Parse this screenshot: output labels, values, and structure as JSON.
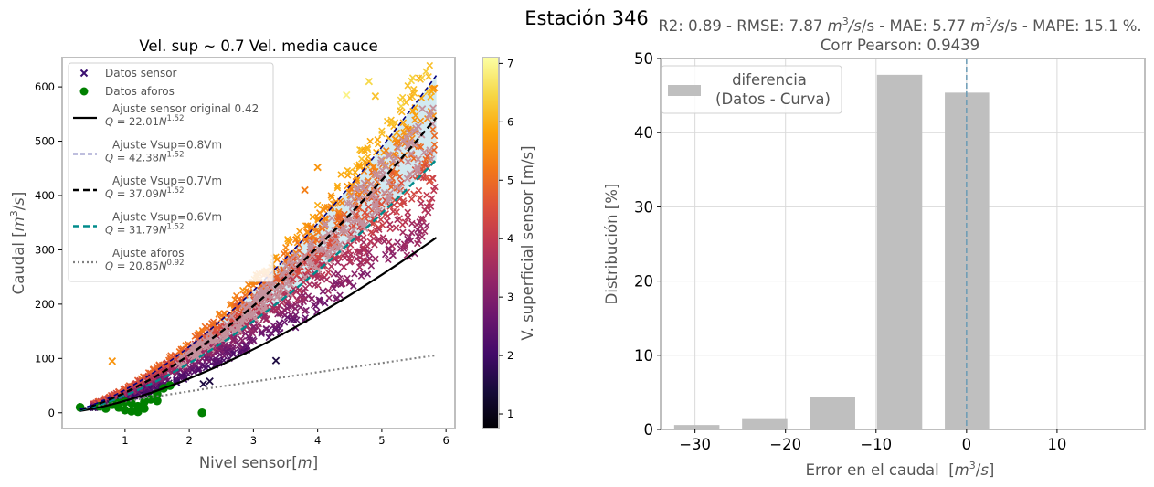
{
  "figure": {
    "suptitle": "Estación 346"
  },
  "chart_data": [
    {
      "type": "scatter",
      "title": "Vel. sup ~ 0.7 Vel. media cauce",
      "xlabel": "Nivel sensor[m]",
      "xlabel_parts": {
        "text": "Nivel sensor[",
        "italic": "m",
        "end": "]"
      },
      "ylabel": "Caudal [m^3/s]",
      "ylabel_parts": {
        "text": "Caudal [",
        "italic": "m",
        "sup": "3",
        "end": "/s]",
        "italic2": "s"
      },
      "xlim": [
        0.02,
        6.14
      ],
      "ylim": [
        -29,
        654
      ],
      "xticks": [
        1,
        2,
        3,
        4,
        5,
        6
      ],
      "yticks": [
        0,
        100,
        200,
        300,
        400,
        500,
        600
      ],
      "grid": false,
      "legend_position": "top-left",
      "legend": [
        {
          "label": "Datos sensor",
          "kind": "marker-x",
          "color": "#3b0f70"
        },
        {
          "label": "Datos aforos",
          "kind": "marker-dot",
          "color": "#008000"
        },
        {
          "label": "Ajuste sensor original 0.42",
          "eq_coef": "22.01",
          "eq_exp": "1.52",
          "kind": "line-solid",
          "color": "#000000"
        },
        {
          "label": "Ajuste Vsup=0.8Vm",
          "eq_coef": "42.38",
          "eq_exp": "1.52",
          "kind": "line-dashed",
          "color": "#00007f"
        },
        {
          "label": "Ajuste Vsup=0.7Vm",
          "eq_coef": "37.09",
          "eq_exp": "1.52",
          "kind": "line-dashed-thick",
          "color": "#000000"
        },
        {
          "label": "Ajuste Vsup=0.6Vm",
          "eq_coef": "31.79",
          "eq_exp": "1.52",
          "kind": "line-dashed-thick",
          "color": "#008b8b"
        },
        {
          "label": "Ajuste aforos",
          "eq_coef": "20.85",
          "eq_exp": "0.92",
          "kind": "line-dotted",
          "color": "#808080"
        }
      ],
      "curves": [
        {
          "name": "Ajuste sensor original 0.42",
          "a": 22.01,
          "b": 1.52,
          "x_range": [
            0.3,
            5.85
          ],
          "color": "#000000",
          "style": "solid"
        },
        {
          "name": "Ajuste Vsup=0.8Vm",
          "a": 42.38,
          "b": 1.52,
          "x_range": [
            0.3,
            5.85
          ],
          "color": "#00007f",
          "style": "dashed"
        },
        {
          "name": "Ajuste Vsup=0.7Vm",
          "a": 37.09,
          "b": 1.52,
          "x_range": [
            0.3,
            5.85
          ],
          "color": "#000000",
          "style": "dashed-thick"
        },
        {
          "name": "Ajuste Vsup=0.6Vm",
          "a": 31.79,
          "b": 1.52,
          "x_range": [
            0.3,
            5.85
          ],
          "color": "#008b8b",
          "style": "dashed-thick"
        },
        {
          "name": "Ajuste aforos",
          "a": 20.85,
          "b": 0.92,
          "x_range": [
            0.3,
            5.85
          ],
          "color": "#808080",
          "style": "dotted"
        }
      ],
      "band": {
        "between": [
          "Ajuste Vsup=0.8Vm",
          "Ajuste Vsup=0.6Vm"
        ],
        "color": "#add8e6"
      },
      "aforos_points": [
        [
          0.3,
          10
        ],
        [
          0.6,
          12
        ],
        [
          0.7,
          8
        ],
        [
          0.8,
          15
        ],
        [
          0.9,
          10
        ],
        [
          1.0,
          5
        ],
        [
          1.1,
          3
        ],
        [
          1.1,
          18
        ],
        [
          1.2,
          12
        ],
        [
          1.3,
          20
        ],
        [
          1.4,
          25
        ],
        [
          1.5,
          22
        ],
        [
          1.0,
          20
        ],
        [
          1.2,
          2
        ],
        [
          1.5,
          35
        ],
        [
          1.6,
          45
        ],
        [
          0.9,
          18
        ],
        [
          2.2,
          0
        ],
        [
          1.3,
          8
        ],
        [
          1.7,
          50
        ]
      ],
      "sensor_outliers": [
        {
          "x": 0.8,
          "y": 95,
          "v": 5.6
        },
        {
          "x": 3.35,
          "y": 96,
          "v": 1.5
        },
        {
          "x": 2.22,
          "y": 53,
          "v": 1.5
        },
        {
          "x": 2.32,
          "y": 58,
          "v": 1.5
        },
        {
          "x": 4.45,
          "y": 585,
          "v": 6.9
        },
        {
          "x": 4.8,
          "y": 610,
          "v": 6.5
        },
        {
          "x": 4.9,
          "y": 583,
          "v": 6.2
        },
        {
          "x": 4.0,
          "y": 452,
          "v": 5.6
        },
        {
          "x": 3.8,
          "y": 410,
          "v": 5.3
        }
      ],
      "colorbar": {
        "label": "V. superficial sensor [m/s]",
        "range": [
          0.75,
          7.1
        ],
        "ticks": [
          1,
          2,
          3,
          4,
          5,
          6,
          7
        ],
        "colormap": "inferno"
      }
    },
    {
      "type": "bar",
      "title_line1": "R2: 0.89 - RMSE: 7.87 m^3/s - MAE: 5.77 m^3/s - MAPE: 15.1 %.",
      "title_parts": {
        "r2": "R2: 0.89 - RMSE: 7.87 ",
        "mae": "/s - MAE: 5.77 ",
        "mape": "/s - MAPE: 15.1 %."
      },
      "title_line2": "Corr Pearson: 0.9439",
      "xlabel": "Error en el caudal  [m^3/s]",
      "xlabel_parts": {
        "text": "Error en el caudal  [",
        "end": "]"
      },
      "ylabel": "Distribución [%]",
      "xlim": [
        -33.8,
        19.7
      ],
      "ylim": [
        0,
        50
      ],
      "xticks": [
        -30,
        -20,
        -10,
        0,
        10
      ],
      "xtick_labels": [
        "−30",
        "−20",
        "−10",
        "0",
        "10"
      ],
      "yticks": [
        0,
        10,
        20,
        30,
        40,
        50
      ],
      "grid": true,
      "legend_position": "top-left",
      "legend": [
        {
          "label_line1": "diferencia",
          "label_line2": "(Datos - Curva)",
          "color": "#bfbfbf"
        }
      ],
      "bins": [
        {
          "left": -32.3,
          "right": -27.3,
          "value": 0.6
        },
        {
          "left": -24.8,
          "right": -19.8,
          "value": 1.4
        },
        {
          "left": -17.3,
          "right": -12.3,
          "value": 4.4
        },
        {
          "left": -9.9,
          "right": -4.9,
          "value": 47.8
        },
        {
          "left": -2.4,
          "right": 2.5,
          "value": 45.4
        }
      ],
      "bar_color": "#bfbfbf",
      "vline": {
        "x": 0,
        "color": "#6a9bb5",
        "style": "dashed"
      }
    }
  ]
}
